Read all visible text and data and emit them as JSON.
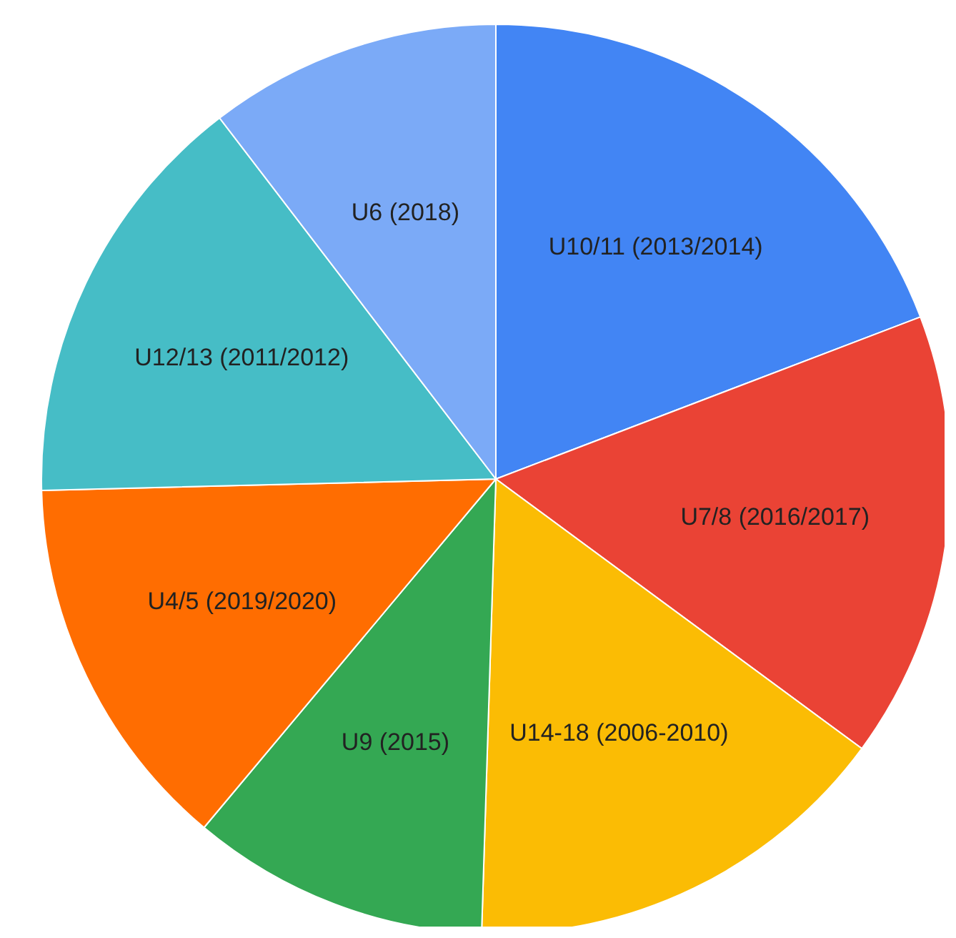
{
  "chart_data": {
    "type": "pie",
    "categories": [
      "U10/11 (2013/2014)",
      "U7/8 (2016/2017)",
      "U14-18 (2006-2010)",
      "U9 (2015)",
      "U4/5 (2019/2020)",
      "U12/13 (2011/2012)",
      "U6 (2018)"
    ],
    "values": [
      19.2,
      15.9,
      15.4,
      10.6,
      13.5,
      15.0,
      10.4
    ],
    "colors": [
      "#4285f4",
      "#ea4335",
      "#fbbc04",
      "#34a853",
      "#ff6d01",
      "#46bdc6",
      "#7baaf7"
    ],
    "legend": false
  }
}
